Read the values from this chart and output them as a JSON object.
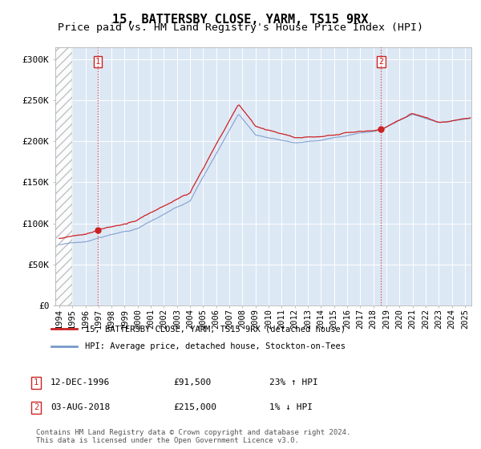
{
  "title": "15, BATTERSBY CLOSE, YARM, TS15 9RX",
  "subtitle": "Price paid vs. HM Land Registry's House Price Index (HPI)",
  "ylabel_ticks": [
    "£0",
    "£50K",
    "£100K",
    "£150K",
    "£200K",
    "£250K",
    "£300K"
  ],
  "ytick_values": [
    0,
    50000,
    100000,
    150000,
    200000,
    250000,
    300000
  ],
  "ylim": [
    0,
    315000
  ],
  "xlim_start": 1993.7,
  "xlim_end": 2025.5,
  "hpi_color": "#7799cc",
  "hpi_fill_color": "#c8d8ee",
  "price_color": "#cc2222",
  "marker_color": "#cc2222",
  "sale1_year": 1996.95,
  "sale1_price": 91500,
  "sale2_year": 2018.6,
  "sale2_price": 215000,
  "legend_line1": "15, BATTERSBY CLOSE, YARM, TS15 9RX (detached house)",
  "legend_line2": "HPI: Average price, detached house, Stockton-on-Tees",
  "annotation1_date": "12-DEC-1996",
  "annotation1_price": "£91,500",
  "annotation1_hpi": "23% ↑ HPI",
  "annotation2_date": "03-AUG-2018",
  "annotation2_price": "£215,000",
  "annotation2_hpi": "1% ↓ HPI",
  "footer": "Contains HM Land Registry data © Crown copyright and database right 2024.\nThis data is licensed under the Open Government Licence v3.0.",
  "chart_bg_color": "#dde8f5",
  "grid_color": "#ffffff",
  "title_fontsize": 11,
  "subtitle_fontsize": 9.5,
  "tick_fontsize": 8
}
